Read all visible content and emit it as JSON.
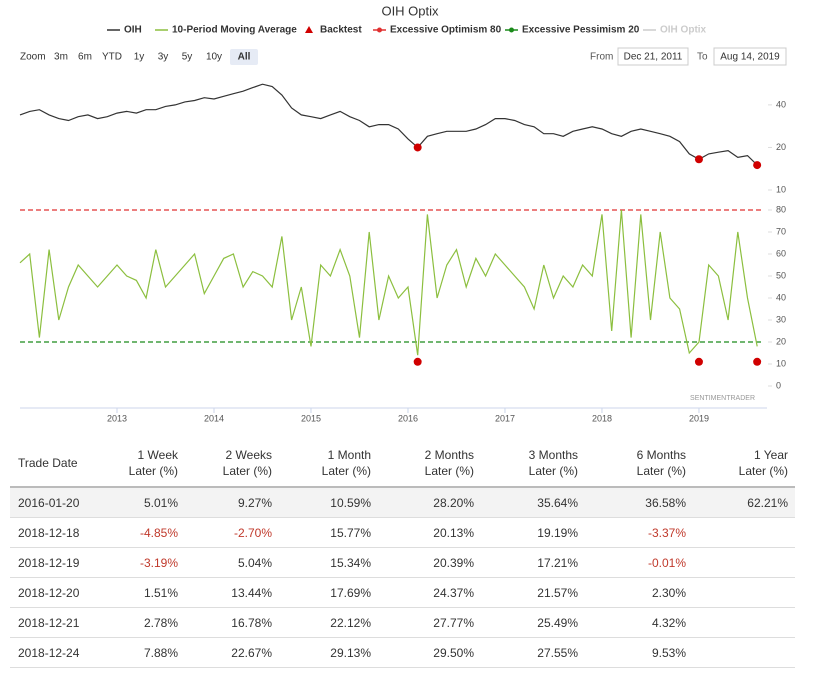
{
  "chart_data": {
    "type": "line",
    "title": "OIH Optix",
    "zoom_label": "Zoom",
    "zoom_buttons": [
      "3m",
      "6m",
      "YTD",
      "1y",
      "3y",
      "5y",
      "10y",
      "All"
    ],
    "zoom_selected": 7,
    "from_label": "From",
    "from_date": "Dec 21, 2011",
    "to_label": "To",
    "to_date": "Aug 14, 2019",
    "watermark": "SENTIMENTRADER",
    "xlim": [
      2012.0,
      2019.65
    ],
    "xticks": [
      2013,
      2014,
      2015,
      2016,
      2017,
      2018,
      2019
    ],
    "log_y": true,
    "ylim": [
      10,
      60
    ],
    "yticks": [
      10,
      20,
      40
    ],
    "y2lim": [
      -10,
      90
    ],
    "y2ticks": [
      0,
      10,
      20,
      30,
      40,
      50,
      60,
      70,
      80
    ],
    "x": [
      2012.0,
      2012.1,
      2012.2,
      2012.3,
      2012.4,
      2012.5,
      2012.6,
      2012.7,
      2012.8,
      2012.9,
      2013.0,
      2013.1,
      2013.2,
      2013.3,
      2013.4,
      2013.5,
      2013.6,
      2013.7,
      2013.8,
      2013.9,
      2014.0,
      2014.1,
      2014.2,
      2014.3,
      2014.4,
      2014.5,
      2014.6,
      2014.7,
      2014.8,
      2014.9,
      2015.0,
      2015.1,
      2015.2,
      2015.3,
      2015.4,
      2015.5,
      2015.6,
      2015.7,
      2015.8,
      2015.9,
      2016.0,
      2016.1,
      2016.2,
      2016.3,
      2016.4,
      2016.5,
      2016.6,
      2016.7,
      2016.8,
      2016.9,
      2017.0,
      2017.1,
      2017.2,
      2017.3,
      2017.4,
      2017.5,
      2017.6,
      2017.7,
      2017.8,
      2017.9,
      2018.0,
      2018.1,
      2018.2,
      2018.3,
      2018.4,
      2018.5,
      2018.6,
      2018.7,
      2018.8,
      2018.9,
      2019.0,
      2019.1,
      2019.2,
      2019.3,
      2019.4,
      2019.5,
      2019.6
    ],
    "series": [
      {
        "name": "OIH",
        "color": "#333333",
        "values": [
          34,
          36,
          37,
          34,
          32,
          31,
          33,
          34,
          32,
          33,
          35,
          36,
          35,
          37,
          37,
          39,
          40,
          42,
          43,
          45,
          44,
          46,
          48,
          50,
          53,
          56,
          54,
          47,
          38,
          34,
          33,
          32,
          34,
          36,
          33,
          31,
          28,
          29,
          29,
          27,
          23,
          20,
          24,
          25,
          26,
          26,
          26,
          27,
          29,
          32,
          32,
          31,
          29,
          28,
          25,
          25,
          24,
          26,
          27,
          28,
          27,
          25,
          24,
          26,
          27,
          26,
          25,
          24,
          22,
          18,
          16.5,
          18,
          18.5,
          19,
          17,
          17.5,
          15
        ]
      },
      {
        "name": "10-Period Moving Average",
        "color": "#8cbf3f",
        "axis": "y2",
        "values": [
          56,
          60,
          22,
          62,
          30,
          45,
          55,
          50,
          45,
          50,
          55,
          50,
          48,
          40,
          62,
          45,
          50,
          55,
          60,
          42,
          50,
          58,
          60,
          45,
          52,
          50,
          45,
          68,
          30,
          45,
          18,
          55,
          50,
          62,
          50,
          22,
          70,
          30,
          50,
          40,
          45,
          14,
          78,
          40,
          55,
          62,
          45,
          58,
          50,
          60,
          55,
          50,
          45,
          35,
          55,
          40,
          50,
          45,
          55,
          50,
          78,
          25,
          80,
          22,
          78,
          30,
          70,
          40,
          35,
          15,
          20,
          55,
          50,
          30,
          70,
          40,
          18
        ]
      },
      {
        "name": "Backtest",
        "color": "#d00000",
        "marker": "triangle",
        "x": [
          2016.1,
          2019.0,
          2019.6
        ],
        "values": [
          20,
          16.5,
          15
        ]
      },
      {
        "name": "Backtest",
        "color": "#d00000",
        "axis": "y2",
        "legend": false,
        "x": [
          2016.1,
          2019.0,
          2019.6
        ],
        "values": [
          11,
          11,
          11
        ]
      },
      {
        "name": "Excessive Optimism 80",
        "color": "#e03030",
        "axis": "y2",
        "dash": true,
        "value": 80
      },
      {
        "name": "Excessive Pessimism 20",
        "color": "#1a8a1a",
        "axis": "y2",
        "dash": true,
        "value": 20
      },
      {
        "name": "OIH Optix",
        "color": "#cccccc",
        "visible": false
      }
    ]
  },
  "table": {
    "columns": [
      [
        "Trade Date"
      ],
      [
        "1 Week",
        "Later (%)"
      ],
      [
        "2 Weeks",
        "Later (%)"
      ],
      [
        "1 Month",
        "Later (%)"
      ],
      [
        "2 Months",
        "Later (%)"
      ],
      [
        "3 Months",
        "Later (%)"
      ],
      [
        "6 Months",
        "Later (%)"
      ],
      [
        "1 Year",
        "Later (%)"
      ]
    ],
    "rows": [
      [
        "2016-01-20",
        "5.01%",
        "9.27%",
        "10.59%",
        "28.20%",
        "35.64%",
        "36.58%",
        "62.21%"
      ],
      [
        "2018-12-18",
        "-4.85%",
        "-2.70%",
        "15.77%",
        "20.13%",
        "19.19%",
        "-3.37%",
        ""
      ],
      [
        "2018-12-19",
        "-3.19%",
        "5.04%",
        "15.34%",
        "20.39%",
        "17.21%",
        "-0.01%",
        ""
      ],
      [
        "2018-12-20",
        "1.51%",
        "13.44%",
        "17.69%",
        "24.37%",
        "21.57%",
        "2.30%",
        ""
      ],
      [
        "2018-12-21",
        "2.78%",
        "16.78%",
        "22.12%",
        "27.77%",
        "25.49%",
        "4.32%",
        ""
      ],
      [
        "2018-12-24",
        "7.88%",
        "22.67%",
        "29.13%",
        "29.50%",
        "27.55%",
        "9.53%",
        ""
      ]
    ]
  }
}
